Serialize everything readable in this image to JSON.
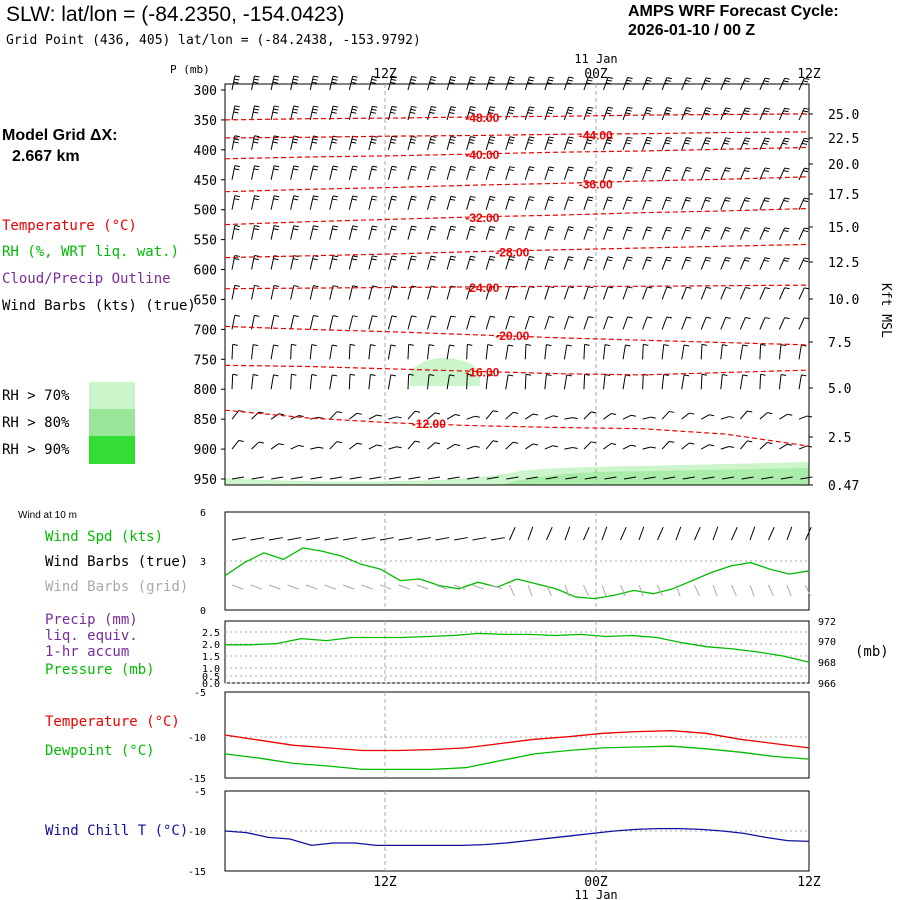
{
  "header": {
    "station_title": "SLW:  lat/lon = (-84.2350, -154.0423)",
    "grid_point": "Grid Point (436, 405) lat/lon = (-84.2438, -153.9792)",
    "forecast_title": "AMPS WRF Forecast Cycle:",
    "forecast_cycle": "2026-01-10 / 00  Z",
    "model_grid": "Model Grid ΔX:",
    "model_grid_value": "2.667 km"
  },
  "legend": {
    "temperature": "Temperature (°C)",
    "rh": "RH (%, WRT liq. wat.)",
    "cloud": "Cloud/Precip Outline",
    "wind_barbs": "Wind Barbs (kts) (true)",
    "rh70": "RH > 70%",
    "rh80": "RH > 80%",
    "rh90": "RH > 90%",
    "wind10m_title": "Wind at 10 m",
    "wind_spd": "Wind Spd (kts)",
    "wind_barbs_true": "Wind Barbs (true)",
    "wind_barbs_grid": "Wind Barbs (grid)",
    "precip1": "Precip (mm)",
    "precip2": "liq. equiv.",
    "precip3": "1-hr accum",
    "pressure": "Pressure (mb)",
    "pressure_unit": "(mb)",
    "temp_label": "Temperature (°C)",
    "dewpoint_label": "Dewpoint (°C)",
    "windchill_label": "Wind Chill T (°C)",
    "kft_label": "Kft MSL",
    "p_label": "P (mb)"
  },
  "colors": {
    "temperature": "#ee0000",
    "rh": "#00bb00",
    "cloud": "#7a2a9a",
    "gray": "#aaaaaa",
    "windchill": "#1010a0",
    "rh70": "#ccf5cc",
    "rh80": "#99e699",
    "rh90": "#33dd33"
  },
  "chart_data": [
    {
      "type": "cross-section",
      "name": "time-height",
      "x_ticks": [
        "12Z",
        "00Z",
        "12Z"
      ],
      "date_label": "11 Jan",
      "y_pressure_ticks": [
        "300",
        "350",
        "400",
        "450",
        "500",
        "550",
        "600",
        "650",
        "700",
        "750",
        "800",
        "850",
        "900",
        "950"
      ],
      "y_height_ticks": [
        "25.0",
        "22.5",
        "20.0",
        "17.5",
        "15.0",
        "12.5",
        "10.0",
        "7.5",
        "5.0",
        "2.5",
        "0.47"
      ],
      "temperature_contours": [
        {
          "label": "-48.00",
          "p": [
            350,
            348,
            347,
            345,
            344,
            342,
            341,
            340
          ]
        },
        {
          "label": "-44.00",
          "p": [
            380,
            379,
            377,
            376,
            374,
            373,
            371,
            370
          ]
        },
        {
          "label": "-40.00",
          "p": [
            415,
            412,
            410,
            407,
            404,
            402,
            399,
            396
          ]
        },
        {
          "label": "-36.00",
          "p": [
            470,
            466,
            463,
            459,
            456,
            452,
            449,
            445
          ]
        },
        {
          "label": "-32.00",
          "p": [
            525,
            520,
            516,
            512,
            509,
            505,
            502,
            498
          ]
        },
        {
          "label": "-28.00",
          "p": [
            580,
            577,
            574,
            570,
            567,
            564,
            561,
            558
          ]
        },
        {
          "label": "-24.00",
          "p": [
            632,
            631,
            630,
            629,
            628,
            628,
            627,
            626
          ]
        },
        {
          "label": "-20.00",
          "p": [
            695,
            700,
            704,
            709,
            714,
            718,
            722,
            726
          ]
        },
        {
          "label": "-16.00",
          "p": [
            760,
            762,
            766,
            770,
            774,
            776,
            772,
            768
          ]
        },
        {
          "label": "-12.00",
          "p": [
            835,
            848,
            856,
            861,
            864,
            866,
            875,
            895
          ]
        }
      ]
    },
    {
      "type": "line",
      "name": "wind10m",
      "ylim": [
        0,
        6
      ],
      "y_ticks": [
        "6",
        "3",
        "0"
      ],
      "series": [
        {
          "name": "Wind Spd (kts)",
          "values": [
            2.1,
            2.9,
            3.5,
            3.1,
            3.8,
            3.6,
            3.3,
            2.8,
            2.5,
            1.8,
            1.9,
            1.5,
            1.3,
            1.7,
            1.4,
            1.9,
            1.6,
            1.3,
            0.8,
            0.7,
            0.9,
            1.2,
            1.0,
            1.3,
            1.8,
            2.3,
            2.7,
            2.9,
            2.5,
            2.2,
            2.4
          ]
        }
      ]
    },
    {
      "type": "line",
      "name": "precip-pressure",
      "left_ticks": [
        "2.5",
        "2.0",
        "1.5",
        "1.0",
        "0.5",
        "0.0"
      ],
      "right_ticks": [
        "972",
        "970",
        "968",
        "966"
      ],
      "ylim": [
        966,
        972
      ],
      "series": [
        {
          "name": "Pressure (mb)",
          "values": [
            969.7,
            969.7,
            969.8,
            970.3,
            970.1,
            970.4,
            970.4,
            970.4,
            970.5,
            970.6,
            970.8,
            970.7,
            970.7,
            970.6,
            970.7,
            970.5,
            970.6,
            970.4,
            969.9,
            969.5,
            969.3,
            969.0,
            968.6,
            968.0
          ]
        }
      ]
    },
    {
      "type": "line",
      "name": "temp-dewpoint",
      "ylim": [
        -15,
        -5
      ],
      "y_ticks": [
        "-5",
        "-10",
        "-15"
      ],
      "series": [
        {
          "name": "Temperature (°C)",
          "values": [
            -10.0,
            -10.6,
            -11.2,
            -11.5,
            -11.8,
            -11.8,
            -11.7,
            -11.5,
            -11.0,
            -10.5,
            -10.2,
            -9.8,
            -9.6,
            -9.5,
            -9.8,
            -10.5,
            -11.0,
            -11.5
          ]
        },
        {
          "name": "Dewpoint (°C)",
          "values": [
            -12.2,
            -12.7,
            -13.3,
            -13.6,
            -14.0,
            -14.0,
            -14.0,
            -13.8,
            -13.0,
            -12.2,
            -11.8,
            -11.5,
            -11.4,
            -11.3,
            -11.6,
            -12.0,
            -12.5,
            -12.8
          ]
        }
      ]
    },
    {
      "type": "line",
      "name": "windchill",
      "ylim": [
        -15,
        -5
      ],
      "y_ticks": [
        "-5",
        "-10",
        "-15"
      ],
      "series": [
        {
          "name": "Wind Chill T (°C)",
          "values": [
            -10.0,
            -10.2,
            -10.8,
            -11.0,
            -11.8,
            -11.5,
            -11.5,
            -11.8,
            -11.8,
            -11.8,
            -11.8,
            -11.8,
            -11.7,
            -11.5,
            -11.2,
            -10.9,
            -10.6,
            -10.3,
            -10.0,
            -9.8,
            -9.7,
            -9.7,
            -9.8,
            -10.0,
            -10.3,
            -10.8,
            -11.2,
            -11.3
          ]
        }
      ]
    }
  ]
}
